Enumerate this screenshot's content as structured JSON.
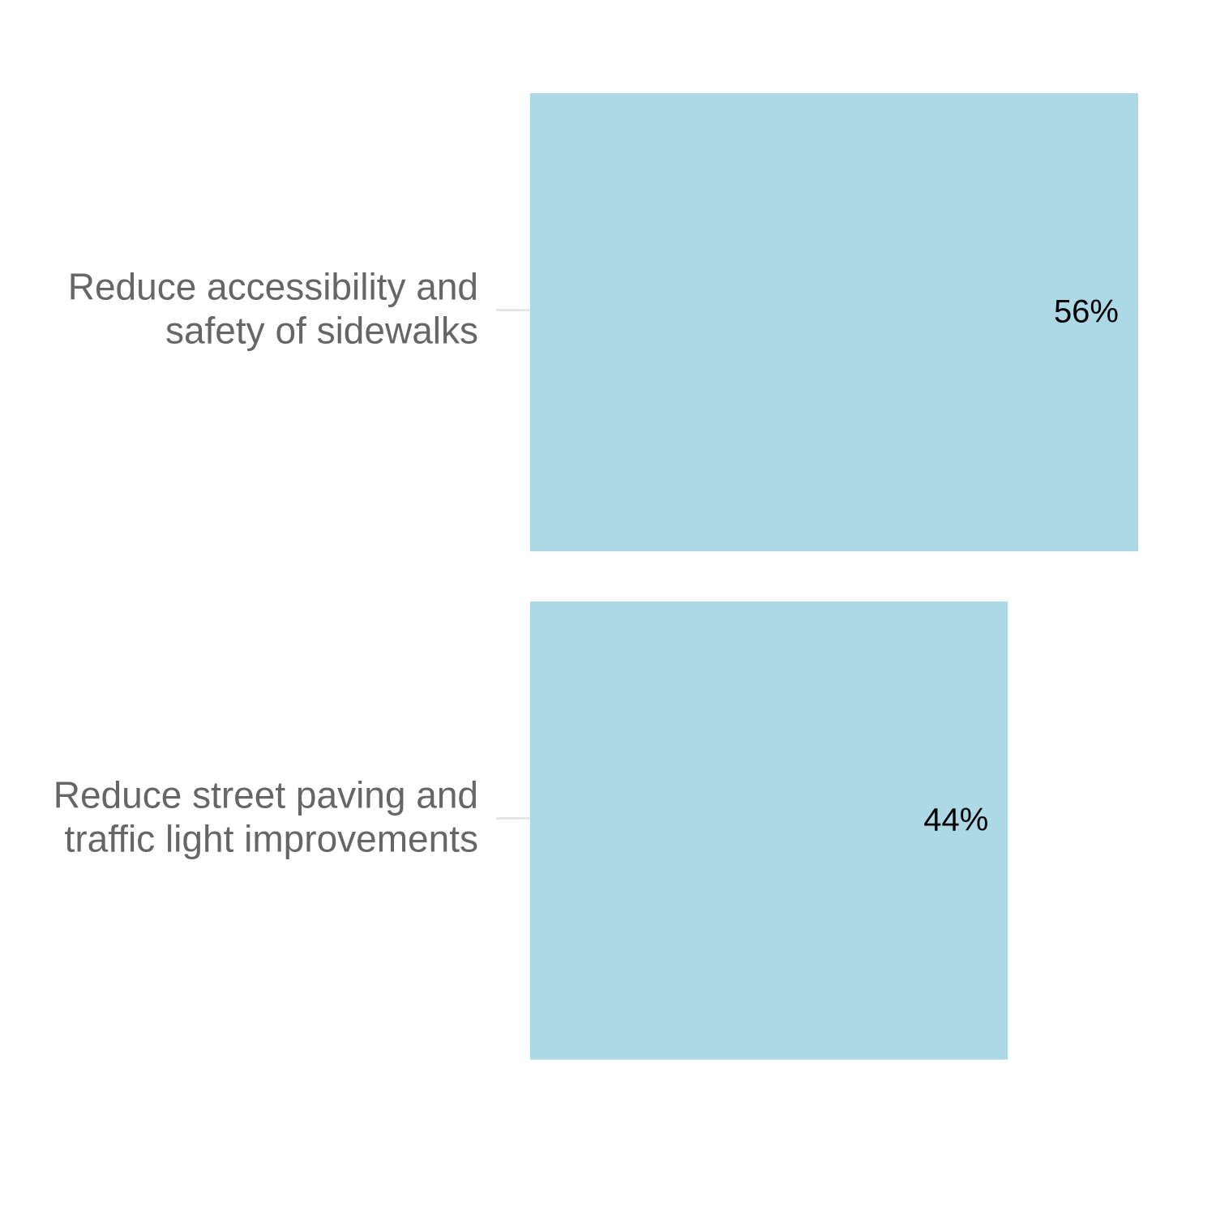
{
  "chart_data": {
    "type": "bar",
    "orientation": "horizontal",
    "categories": [
      [
        "Reduce accessibility and",
        "safety of sidewalks"
      ],
      [
        "Reduce street paving and",
        "traffic light improvements"
      ]
    ],
    "values": [
      56,
      44
    ],
    "value_labels": [
      "56%",
      "44%"
    ],
    "xlim": [
      0,
      60
    ],
    "grid": false,
    "legend": "none",
    "colors": {
      "bar": "#add8e6",
      "category_label": "#666666",
      "value_label": "#000000",
      "tick": "#e6e6e6"
    }
  }
}
